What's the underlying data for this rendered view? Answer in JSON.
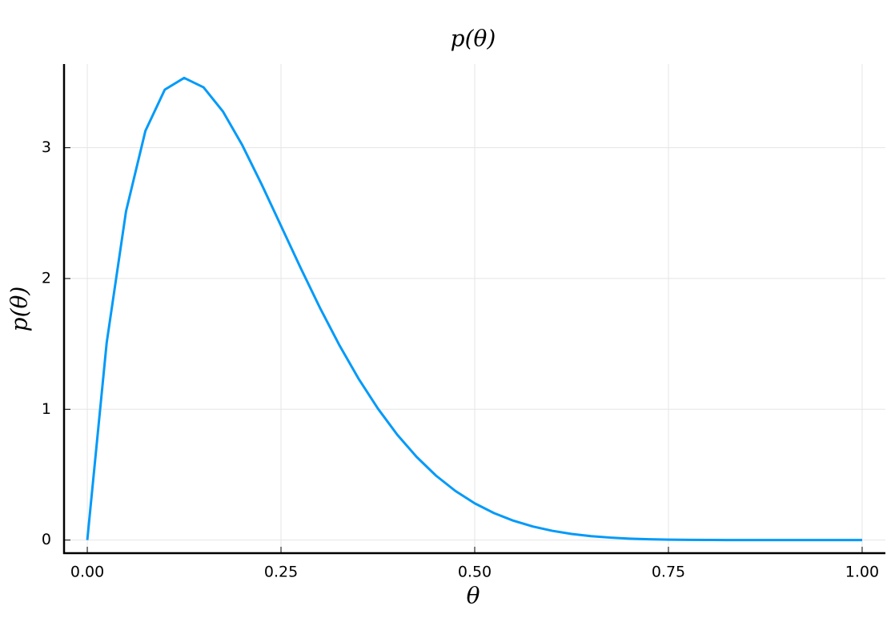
{
  "chart_data": {
    "type": "line",
    "title": "p(θ)",
    "x_label": "θ",
    "y_label": "p(θ)",
    "x": [
      0,
      0.025,
      0.05,
      0.075,
      0.1,
      0.125,
      0.15,
      0.175,
      0.2,
      0.225,
      0.25,
      0.275,
      0.3,
      0.325,
      0.35,
      0.375,
      0.4,
      0.425,
      0.45,
      0.475,
      0.5,
      0.525,
      0.55,
      0.575,
      0.6,
      0.625,
      0.65,
      0.675,
      0.7,
      0.725,
      0.75,
      0.775,
      0.8,
      0.825,
      0.85,
      0.875,
      0.9,
      0.925,
      0.95,
      0.975,
      1
    ],
    "values": [
      0,
      1.508,
      2.514,
      3.129,
      3.444,
      3.534,
      3.462,
      3.278,
      3.02,
      2.72,
      2.403,
      2.085,
      1.779,
      1.494,
      1.235,
      1.006,
      0.806,
      0.636,
      0.493,
      0.376,
      0.281,
      0.206,
      0.148,
      0.104,
      0.071,
      0.047,
      0.03,
      0.019,
      0.011,
      0.006,
      0.003,
      0.002,
      0.001,
      0,
      0,
      0,
      0,
      0,
      0,
      0,
      0
    ],
    "color": "#009af9",
    "xlim": [
      -0.03,
      1.03
    ],
    "ylim": [
      -0.1,
      3.64
    ],
    "xticks": [
      {
        "value": 0,
        "label": "0.00"
      },
      {
        "value": 0.25,
        "label": "0.25"
      },
      {
        "value": 0.5,
        "label": "0.50"
      },
      {
        "value": 0.75,
        "label": "0.75"
      },
      {
        "value": 1,
        "label": "1.00"
      }
    ],
    "yticks": [
      0,
      1,
      2,
      3
    ],
    "grid": true
  }
}
